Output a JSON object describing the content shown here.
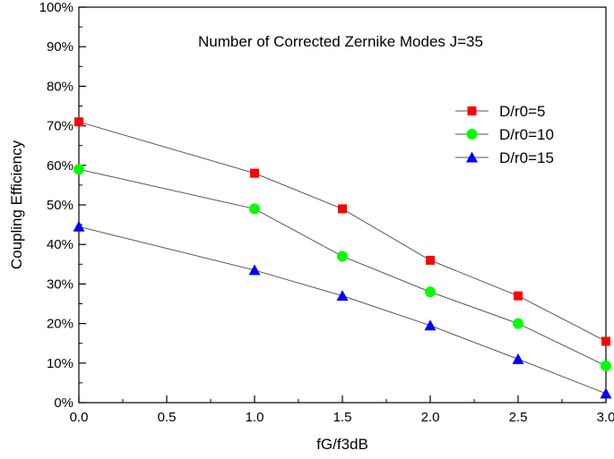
{
  "chart_data": {
    "type": "line",
    "title": "Number of Corrected Zernike Modes J=35",
    "xlabel": "fG/f3dB",
    "ylabel": "Coupling Efficiency",
    "xlim": [
      0.0,
      3.0
    ],
    "ylim": [
      0,
      100
    ],
    "x_ticks": [
      "0.0",
      "0.5",
      "1.0",
      "1.5",
      "2.0",
      "2.5",
      "3.0"
    ],
    "y_ticks": [
      "0%",
      "10%",
      "20%",
      "30%",
      "40%",
      "50%",
      "60%",
      "70%",
      "80%",
      "90%",
      "100%"
    ],
    "legend_position": "right",
    "grid": false,
    "x": [
      0.0,
      1.0,
      1.5,
      2.0,
      2.5,
      3.0
    ],
    "series": [
      {
        "name": "D/r0=5",
        "marker": "square",
        "color": "#ff0000",
        "values": [
          71,
          58,
          49,
          36,
          27,
          15.5
        ]
      },
      {
        "name": "D/r0=10",
        "marker": "circle",
        "color": "#00ff00",
        "values": [
          59,
          49,
          37,
          28,
          20,
          9.3
        ]
      },
      {
        "name": "D/r0=15",
        "marker": "triangle",
        "color": "#0000ff",
        "values": [
          44.5,
          33.5,
          27,
          19.5,
          11,
          2.3
        ]
      }
    ]
  }
}
